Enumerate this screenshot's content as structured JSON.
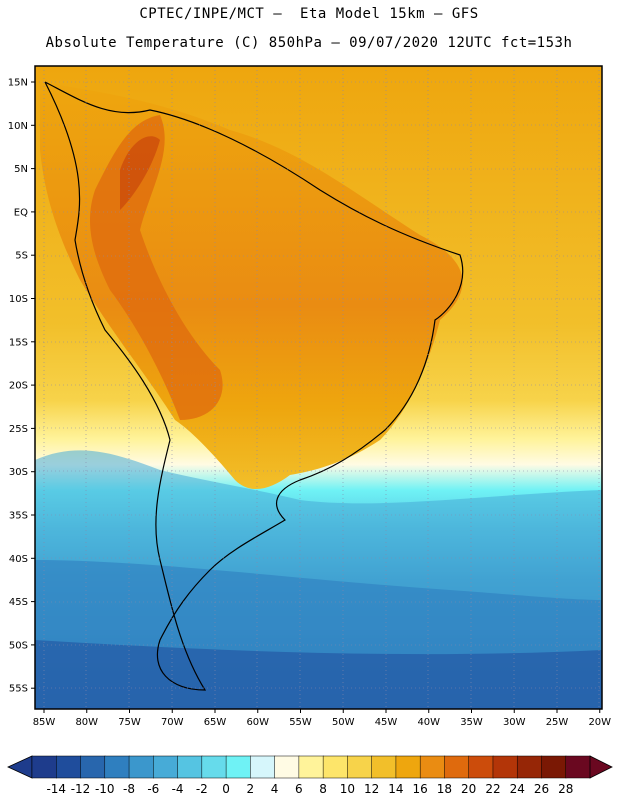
{
  "title_line1": "CPTEC/INPE/MCT –  Eta Model 15km – GFS",
  "title_line2": "Absolute Temperature (C) 850hPa – 09/07/2020 12UTC fct=153h",
  "lat_labels": [
    "15N",
    "10N",
    "5N",
    "EQ",
    "5S",
    "10S",
    "15S",
    "20S",
    "25S",
    "30S",
    "35S",
    "40S",
    "45S",
    "50S",
    "55S"
  ],
  "lon_labels": [
    "85W",
    "80W",
    "75W",
    "70W",
    "65W",
    "60W",
    "55W",
    "50W",
    "45W",
    "40W",
    "35W",
    "30W",
    "25W",
    "20W"
  ],
  "colorbar": {
    "labels": [
      "-14",
      "-12",
      "-10",
      "-8",
      "-6",
      "-4",
      "-2",
      "0",
      "2",
      "4",
      "6",
      "8",
      "10",
      "12",
      "14",
      "16",
      "18",
      "20",
      "22",
      "24",
      "26",
      "28"
    ],
    "colors": [
      "#1e3c8c",
      "#1f4d9c",
      "#2866ad",
      "#2f7fbf",
      "#3b97cc",
      "#47abd7",
      "#55c4e2",
      "#66dbeb",
      "#6ff2f5",
      "#d6f6fb",
      "#fffbe4",
      "#fff39a",
      "#fde56a",
      "#f7d34a",
      "#f2bf2a",
      "#eea60e",
      "#ea8c12",
      "#df6a0d",
      "#cc4c0b",
      "#b33508",
      "#962606",
      "#7a1804",
      "#6a0820"
    ]
  }
}
